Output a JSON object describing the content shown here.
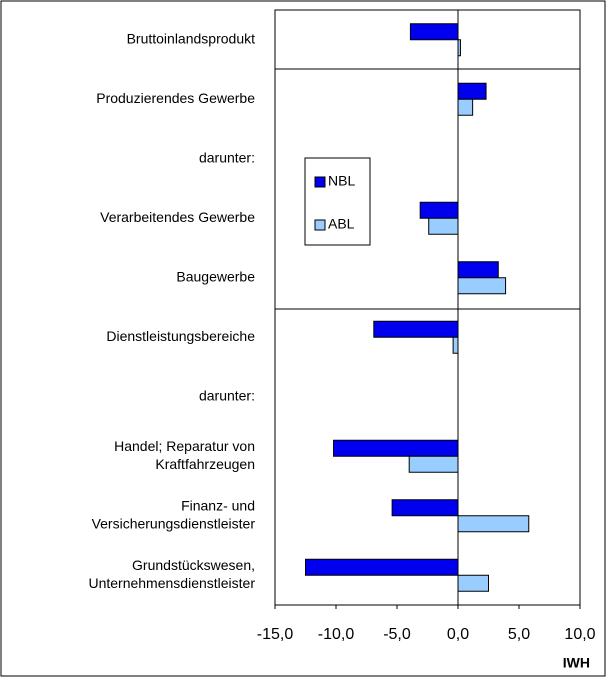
{
  "chart_data": {
    "type": "hbar",
    "categories": [
      [
        "Bruttoinlandsprodukt"
      ],
      [
        "Produzierendes Gewerbe"
      ],
      [
        "darunter:"
      ],
      [
        "Verarbeitendes Gewerbe"
      ],
      [
        "Baugewerbe"
      ],
      [
        "Dienstleistungsbereiche"
      ],
      [
        "darunter:"
      ],
      [
        "Handel; Reparatur von",
        "Kraftfahrzeugen"
      ],
      [
        "Finanz- und",
        "Versicherungsdienstleister"
      ],
      [
        "Grundstückswesen,",
        "Unternehmensdienstleister"
      ]
    ],
    "series": [
      {
        "name": "NBL",
        "color": "#0000ee",
        "values": [
          -3.9,
          2.3,
          null,
          -3.1,
          3.3,
          -6.9,
          null,
          -10.2,
          -5.4,
          -12.5
        ]
      },
      {
        "name": "ABL",
        "color": "#99ccff",
        "values": [
          0.2,
          1.2,
          null,
          -2.4,
          3.9,
          -0.4,
          null,
          -4.0,
          5.8,
          2.5
        ]
      }
    ],
    "xlim": [
      -15,
      10
    ],
    "xticks": [
      {
        "value": -15,
        "label": "-15,0"
      },
      {
        "value": -10,
        "label": "-10,0"
      },
      {
        "value": -5,
        "label": "-5,0"
      },
      {
        "value": 0,
        "label": "0,0"
      },
      {
        "value": 5,
        "label": "5,0"
      },
      {
        "value": 10,
        "label": "10,0"
      }
    ],
    "legend": "inside-left",
    "note": "IWH"
  }
}
